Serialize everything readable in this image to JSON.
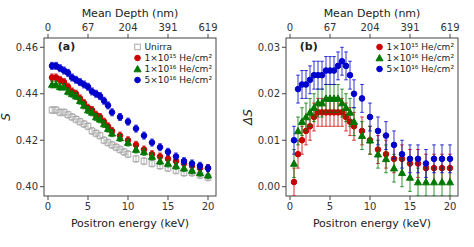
{
  "chart_data": [
    {
      "type": "scatter",
      "title": "(a)",
      "xlabel": "Positron energy (keV)",
      "ylabel": "S",
      "x2label": "Mean Depth (nm)",
      "xlim": [
        -0.5,
        21
      ],
      "xticks": [
        0,
        5,
        10,
        15,
        20
      ],
      "x2lim": [
        -0.5,
        21
      ],
      "x2ticks": [
        {
          "value": 0,
          "label": "0"
        },
        {
          "value": 5,
          "label": "67"
        },
        {
          "value": 10,
          "label": "204"
        },
        {
          "value": 15,
          "label": "391"
        },
        {
          "value": 20,
          "label": "619"
        }
      ],
      "ylim": [
        0.396,
        0.464
      ],
      "yticks": [
        {
          "value": 0.4,
          "label": "0.40"
        },
        0.42,
        0.44,
        0.46
      ],
      "grid": false,
      "legend": "upper right",
      "series": [
        {
          "name": "Unirra",
          "color": "#aaaaaa",
          "marker": "open-square",
          "x": [
            0.5,
            1.0,
            1.5,
            2.0,
            2.5,
            3.0,
            3.5,
            4.0,
            4.5,
            5.0,
            5.5,
            6.0,
            6.5,
            7.0,
            7.5,
            8.0,
            8.5,
            9.0,
            9.5,
            10.0,
            11.0,
            12.0,
            13.0,
            14.0,
            15.0,
            16.0,
            17.0,
            18.0,
            19.0,
            20.0
          ],
          "values": [
            0.433,
            0.433,
            0.432,
            0.432,
            0.431,
            0.43,
            0.429,
            0.428,
            0.427,
            0.426,
            0.424,
            0.423,
            0.422,
            0.42,
            0.419,
            0.418,
            0.417,
            0.416,
            0.415,
            0.414,
            0.412,
            0.411,
            0.41,
            0.409,
            0.408,
            0.407,
            0.406,
            0.406,
            0.405,
            0.404
          ],
          "yerr": [
            0.0015,
            0.0015,
            0.0015,
            0.0015,
            0.0015,
            0.0015,
            0.0015,
            0.0015,
            0.0015,
            0.0015,
            0.0015,
            0.0015,
            0.0015,
            0.0015,
            0.0015,
            0.0015,
            0.0015,
            0.0015,
            0.0015,
            0.0015,
            0.0015,
            0.0015,
            0.0015,
            0.0015,
            0.0015,
            0.0015,
            0.0015,
            0.0015,
            0.0015,
            0.0015
          ]
        },
        {
          "name": "1×10¹⁵ He/cm²",
          "color": "#cc0000",
          "marker": "circle",
          "x": [
            0.5,
            1.0,
            1.5,
            2.0,
            2.5,
            3.0,
            3.5,
            4.0,
            4.5,
            5.0,
            5.5,
            6.0,
            6.5,
            7.0,
            7.5,
            8.0,
            9.0,
            10.0,
            11.0,
            12.0,
            13.0,
            14.0,
            15.0,
            16.0,
            17.0,
            18.0,
            19.0,
            20.0
          ],
          "values": [
            0.447,
            0.447,
            0.446,
            0.445,
            0.443,
            0.441,
            0.44,
            0.438,
            0.436,
            0.434,
            0.433,
            0.431,
            0.43,
            0.428,
            0.426,
            0.424,
            0.422,
            0.42,
            0.418,
            0.416,
            0.414,
            0.413,
            0.412,
            0.411,
            0.41,
            0.409,
            0.408,
            0.408
          ],
          "yerr": [
            0.0015,
            0.0015,
            0.0015,
            0.0015,
            0.0015,
            0.0015,
            0.0015,
            0.0015,
            0.0015,
            0.0015,
            0.0015,
            0.0015,
            0.0015,
            0.0015,
            0.0015,
            0.0015,
            0.0015,
            0.0015,
            0.0015,
            0.0015,
            0.0015,
            0.0015,
            0.0015,
            0.0015,
            0.0015,
            0.0015,
            0.0015,
            0.0015
          ]
        },
        {
          "name": "1×10¹⁶ He/cm²",
          "color": "#007700",
          "marker": "triangle",
          "x": [
            0.5,
            1.0,
            1.5,
            2.0,
            2.5,
            3.0,
            3.5,
            4.0,
            4.5,
            5.0,
            5.5,
            6.0,
            6.5,
            7.0,
            7.5,
            8.0,
            9.0,
            10.0,
            11.0,
            12.0,
            13.0,
            14.0,
            15.0,
            16.0,
            17.0,
            18.0,
            19.0,
            20.0
          ],
          "values": [
            0.444,
            0.444,
            0.443,
            0.443,
            0.441,
            0.44,
            0.439,
            0.437,
            0.435,
            0.433,
            0.432,
            0.43,
            0.429,
            0.427,
            0.425,
            0.423,
            0.421,
            0.419,
            0.416,
            0.415,
            0.413,
            0.411,
            0.41,
            0.409,
            0.408,
            0.407,
            0.406,
            0.405
          ],
          "yerr": [
            0.0015,
            0.0015,
            0.0015,
            0.0015,
            0.0015,
            0.0015,
            0.0015,
            0.0015,
            0.0015,
            0.0015,
            0.0015,
            0.0015,
            0.0015,
            0.0015,
            0.0015,
            0.0015,
            0.0015,
            0.0015,
            0.0015,
            0.0015,
            0.0015,
            0.0015,
            0.0015,
            0.0015,
            0.0015,
            0.0015,
            0.0015,
            0.0015
          ]
        },
        {
          "name": "5×10¹⁶ He/cm²",
          "color": "#0000cc",
          "marker": "circle",
          "x": [
            0.5,
            1.0,
            1.5,
            2.0,
            2.5,
            3.0,
            3.5,
            4.0,
            4.5,
            5.0,
            5.5,
            6.0,
            6.5,
            7.0,
            7.5,
            8.0,
            9.0,
            10.0,
            11.0,
            12.0,
            13.0,
            14.0,
            15.0,
            16.0,
            17.0,
            18.0,
            19.0,
            20.0
          ],
          "values": [
            0.452,
            0.452,
            0.451,
            0.45,
            0.449,
            0.447,
            0.446,
            0.445,
            0.444,
            0.443,
            0.441,
            0.44,
            0.439,
            0.437,
            0.435,
            0.432,
            0.43,
            0.428,
            0.425,
            0.422,
            0.419,
            0.417,
            0.415,
            0.413,
            0.411,
            0.41,
            0.409,
            0.408
          ],
          "yerr": [
            0.0015,
            0.0015,
            0.0015,
            0.0015,
            0.0015,
            0.0015,
            0.0015,
            0.0015,
            0.0015,
            0.0015,
            0.0015,
            0.0015,
            0.0015,
            0.0015,
            0.0015,
            0.0015,
            0.0015,
            0.0015,
            0.0015,
            0.0015,
            0.0015,
            0.0015,
            0.0015,
            0.0015,
            0.0015,
            0.0015,
            0.0015,
            0.0015
          ]
        }
      ]
    },
    {
      "type": "scatter",
      "title": "(b)",
      "xlabel": "Positron energy (keV)",
      "ylabel": "ΔS",
      "x2label": "Mean Depth (nm)",
      "xlim": [
        -0.5,
        21
      ],
      "xticks": [
        0,
        5,
        10,
        15,
        20
      ],
      "x2lim": [
        -0.5,
        21
      ],
      "x2ticks": [
        {
          "value": 0,
          "label": "0"
        },
        {
          "value": 5,
          "label": "67"
        },
        {
          "value": 10,
          "label": "204"
        },
        {
          "value": 15,
          "label": "391"
        },
        {
          "value": 20,
          "label": "619"
        }
      ],
      "ylim": [
        -0.002,
        0.032
      ],
      "yticks": [
        {
          "value": 0,
          "label": "0.00"
        },
        0.01,
        0.02,
        0.03
      ],
      "grid": false,
      "legend": "upper right",
      "series": [
        {
          "name": "1×10¹⁵ He/cm²",
          "color": "#cc0000",
          "marker": "circle",
          "x": [
            0.5,
            1.0,
            1.5,
            2.0,
            2.5,
            3.0,
            3.5,
            4.0,
            4.5,
            5.0,
            5.5,
            6.0,
            6.5,
            7.0,
            7.5,
            8.0,
            9.0,
            10.0,
            11.0,
            12.0,
            13.0,
            14.0,
            15.0,
            16.0,
            17.0,
            18.0,
            19.0,
            20.0
          ],
          "values": [
            0.001,
            0.007,
            0.01,
            0.012,
            0.013,
            0.015,
            0.016,
            0.016,
            0.016,
            0.016,
            0.016,
            0.016,
            0.016,
            0.015,
            0.014,
            0.013,
            0.012,
            0.01,
            0.008,
            0.007,
            0.006,
            0.006,
            0.005,
            0.005,
            0.004,
            0.004,
            0.004,
            0.004
          ],
          "yerr": [
            0.003,
            0.003,
            0.003,
            0.003,
            0.003,
            0.003,
            0.003,
            0.003,
            0.003,
            0.003,
            0.003,
            0.003,
            0.003,
            0.003,
            0.003,
            0.003,
            0.003,
            0.003,
            0.003,
            0.003,
            0.003,
            0.003,
            0.003,
            0.003,
            0.003,
            0.003,
            0.003,
            0.003
          ]
        },
        {
          "name": "1×10¹⁶ He/cm²",
          "color": "#007700",
          "marker": "triangle",
          "x": [
            0.5,
            1.0,
            1.5,
            2.0,
            2.5,
            3.0,
            3.5,
            4.0,
            4.5,
            5.0,
            5.5,
            6.0,
            6.5,
            7.0,
            7.5,
            8.0,
            9.0,
            10.0,
            11.0,
            12.0,
            13.0,
            14.0,
            15.0,
            16.0,
            17.0,
            18.0,
            19.0,
            20.0
          ],
          "values": [
            0.005,
            0.012,
            0.014,
            0.015,
            0.016,
            0.017,
            0.018,
            0.018,
            0.019,
            0.019,
            0.019,
            0.019,
            0.018,
            0.017,
            0.016,
            0.014,
            0.011,
            0.01,
            0.007,
            0.006,
            0.004,
            0.003,
            0.002,
            0.001,
            0.001,
            0.001,
            0.001,
            0.001
          ],
          "yerr": [
            0.003,
            0.003,
            0.003,
            0.003,
            0.003,
            0.003,
            0.003,
            0.003,
            0.003,
            0.003,
            0.003,
            0.003,
            0.003,
            0.003,
            0.003,
            0.003,
            0.003,
            0.003,
            0.003,
            0.003,
            0.003,
            0.003,
            0.003,
            0.003,
            0.003,
            0.003,
            0.003,
            0.003
          ]
        },
        {
          "name": "5×10¹⁶ He/cm²",
          "color": "#0000cc",
          "marker": "circle",
          "x": [
            0.5,
            1.0,
            1.5,
            2.0,
            2.5,
            3.0,
            3.5,
            4.0,
            4.5,
            5.0,
            5.5,
            6.0,
            6.5,
            7.0,
            7.5,
            8.0,
            9.0,
            10.0,
            11.0,
            12.0,
            13.0,
            14.0,
            15.0,
            16.0,
            17.0,
            18.0,
            19.0,
            20.0
          ],
          "values": [
            0.01,
            0.021,
            0.022,
            0.022,
            0.023,
            0.024,
            0.024,
            0.024,
            0.025,
            0.025,
            0.025,
            0.026,
            0.027,
            0.026,
            0.024,
            0.02,
            0.019,
            0.015,
            0.012,
            0.011,
            0.009,
            0.007,
            0.006,
            0.006,
            0.005,
            0.006,
            0.006,
            0.006
          ],
          "yerr": [
            0.003,
            0.003,
            0.003,
            0.003,
            0.003,
            0.003,
            0.003,
            0.003,
            0.003,
            0.003,
            0.003,
            0.003,
            0.003,
            0.003,
            0.003,
            0.003,
            0.003,
            0.003,
            0.003,
            0.003,
            0.003,
            0.003,
            0.003,
            0.003,
            0.003,
            0.003,
            0.003,
            0.003
          ]
        }
      ]
    }
  ]
}
